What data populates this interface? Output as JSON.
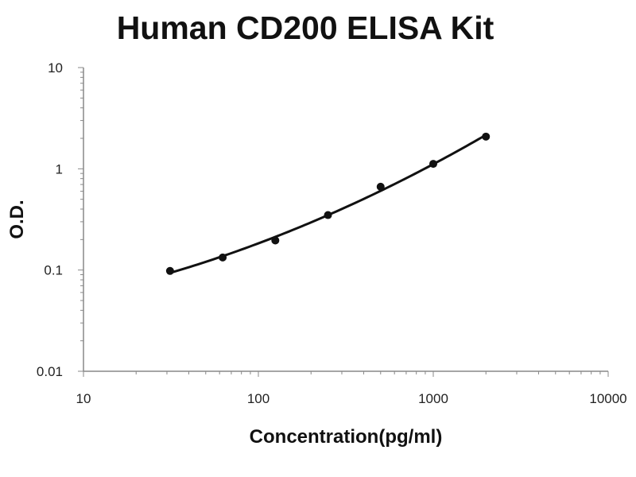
{
  "chart_data": {
    "type": "scatter",
    "title": "Human CD200 ELISA Kit",
    "xlabel": "Concentration(pg/ml)",
    "ylabel": "O.D.",
    "xscale": "log",
    "yscale": "log",
    "xlim": [
      10,
      10000
    ],
    "ylim": [
      0.01,
      10
    ],
    "xticks": [
      "10",
      "100",
      "1000",
      "10000"
    ],
    "yticks": [
      "0.01",
      "0.1",
      "1",
      "10"
    ],
    "grid": false,
    "legend": "none",
    "series": [
      {
        "x": [
          31.25,
          62.5,
          125,
          250,
          500,
          1000,
          2000
        ],
        "y": [
          0.098,
          0.133,
          0.196,
          0.349,
          0.665,
          1.12,
          2.08
        ],
        "fit_line": true
      }
    ],
    "colors": {
      "marker": "#111111",
      "line": "#111111",
      "axis": "#888888"
    }
  }
}
